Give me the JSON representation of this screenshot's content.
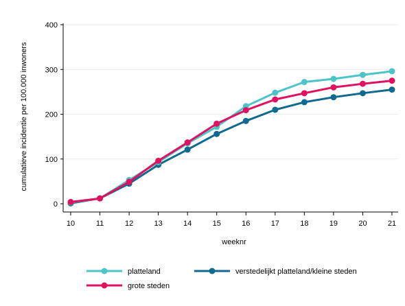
{
  "chart_data": {
    "type": "line",
    "xlabel": "weeknr",
    "ylabel": "cumulatieve incidentie per 100.000 inwoners",
    "x": [
      10,
      11,
      12,
      13,
      14,
      15,
      16,
      17,
      18,
      19,
      20,
      21
    ],
    "xlim": [
      10,
      21
    ],
    "ylim": [
      0,
      400
    ],
    "yticks": [
      0,
      100,
      200,
      300,
      400
    ],
    "grid": true,
    "legend_position": "bottom",
    "series": [
      {
        "name": "platteland",
        "color": "#4DC5C8",
        "values": [
          3,
          12,
          53,
          93,
          135,
          172,
          218,
          248,
          272,
          279,
          288,
          296
        ]
      },
      {
        "name": "verstedelijkt platteland/kleine steden",
        "color": "#10698F",
        "values": [
          1,
          12,
          45,
          87,
          121,
          156,
          185,
          210,
          227,
          238,
          247,
          255
        ]
      },
      {
        "name": "grote steden",
        "color": "#E0115F",
        "values": [
          4,
          12,
          49,
          96,
          137,
          179,
          209,
          233,
          247,
          260,
          268,
          275
        ]
      }
    ]
  }
}
